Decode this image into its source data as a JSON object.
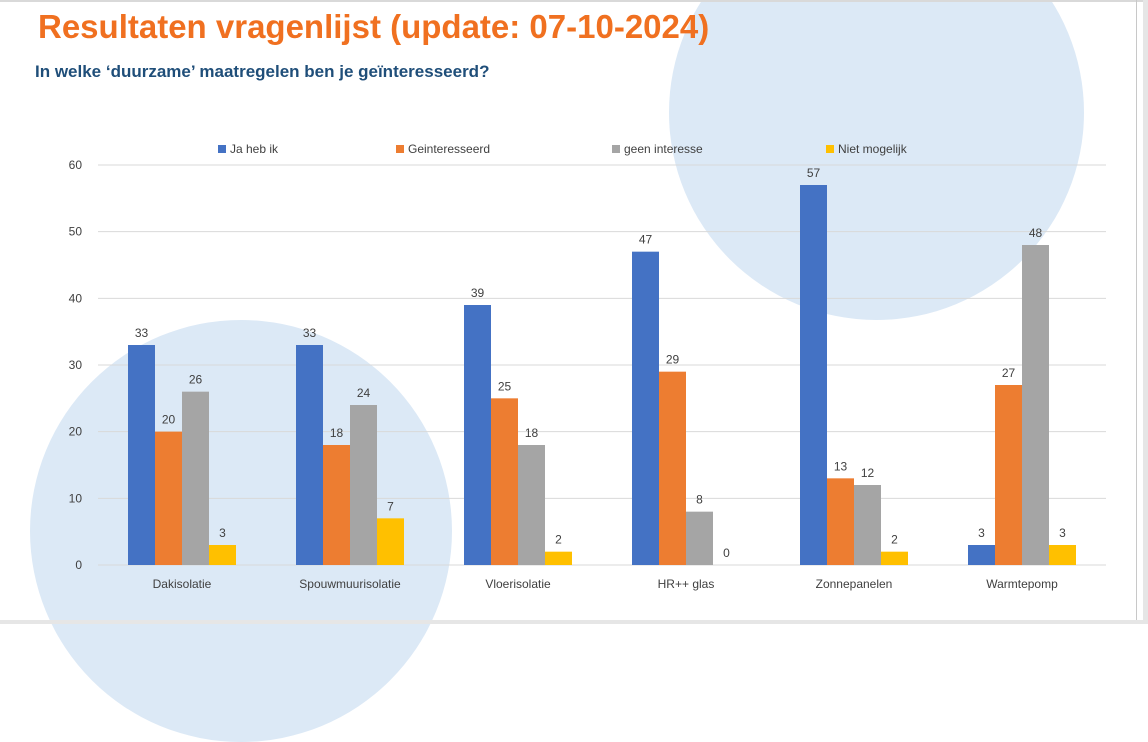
{
  "page": {
    "title": "Resultaten vragenlijst (update: 07-10-2024)",
    "subtitle": "In welke ‘duurzame’ maatregelen ben je geïnteresseerd?"
  },
  "colors": {
    "title": "#f07020",
    "subtitle": "#1f4e79",
    "decoration": "#dce9f6"
  },
  "chart_data": {
    "type": "bar",
    "title": "",
    "xlabel": "",
    "ylabel": "",
    "ylim": [
      0,
      60
    ],
    "yticks": [
      0,
      10,
      20,
      30,
      40,
      50,
      60
    ],
    "grid": true,
    "legend_position": "top",
    "categories": [
      "Dakisolatie",
      "Spouwmuurisolatie",
      "Vloerisolatie",
      "HR++ glas",
      "Zonnepanelen",
      "Warmtepomp"
    ],
    "series": [
      {
        "name": "Ja heb ik",
        "color": "#4472c4",
        "values": [
          33,
          33,
          39,
          47,
          57,
          3
        ]
      },
      {
        "name": "Geinteresseerd",
        "color": "#ed7d31",
        "values": [
          20,
          18,
          25,
          29,
          13,
          27
        ]
      },
      {
        "name": "geen interesse",
        "color": "#a5a5a5",
        "values": [
          26,
          24,
          18,
          8,
          12,
          48
        ]
      },
      {
        "name": "Niet mogelijk",
        "color": "#ffc000",
        "values": [
          3,
          7,
          2,
          0,
          2,
          3
        ]
      }
    ]
  }
}
